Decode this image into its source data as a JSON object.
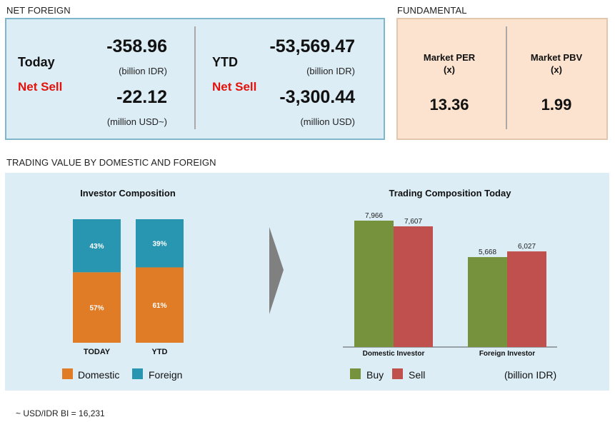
{
  "net_foreign": {
    "section_title": "NET FOREIGN",
    "today": {
      "label": "Today",
      "status": "Net Sell",
      "idr_value": "-358.96",
      "idr_unit": "(billion IDR)",
      "usd_value": "-22.12",
      "usd_unit": "(million USD~)"
    },
    "ytd": {
      "label": "YTD",
      "status": "Net Sell",
      "idr_value": "-53,569.47",
      "idr_unit": "(billion IDR)",
      "usd_value": "-3,300.44",
      "usd_unit": "(million USD)"
    }
  },
  "fundamental": {
    "section_title": "FUNDAMENTAL",
    "per": {
      "label": "Market PER",
      "unit": "(x)",
      "value": "13.36"
    },
    "pbv": {
      "label": "Market PBV",
      "unit": "(x)",
      "value": "1.99"
    }
  },
  "trading_value": {
    "section_title": "TRADING VALUE BY DOMESTIC AND FOREIGN",
    "footnote": "~ USD/IDR BI = 16,231"
  },
  "colors": {
    "domestic": "#e17c26",
    "foreign": "#2895b1",
    "buy": "#76923c",
    "sell": "#c0504d",
    "net_sell": "#e3120b"
  },
  "chart_data": [
    {
      "type": "bar",
      "stacked": true,
      "percent": true,
      "title": "Investor Composition",
      "categories": [
        "TODAY",
        "YTD"
      ],
      "series": [
        {
          "name": "Domestic",
          "values": [
            57,
            61
          ],
          "labels": [
            "57%",
            "61%"
          ],
          "color": "#e17c26"
        },
        {
          "name": "Foreign",
          "values": [
            43,
            39
          ],
          "labels": [
            "43%",
            "39%"
          ],
          "color": "#2895b1"
        }
      ],
      "ylim": [
        0,
        100
      ],
      "legend": "bottom"
    },
    {
      "type": "bar",
      "title": "Trading Composition Today",
      "categories": [
        "Domestic Investor",
        "Foreign Investor"
      ],
      "series": [
        {
          "name": "Buy",
          "values": [
            7966,
            5668
          ],
          "labels": [
            "7,966",
            "5,668"
          ],
          "color": "#76923c"
        },
        {
          "name": "Sell",
          "values": [
            7607,
            6027
          ],
          "labels": [
            "7,607",
            "6,027"
          ],
          "color": "#c0504d"
        }
      ],
      "unit": "(billion IDR)",
      "ylim": [
        0,
        9000
      ],
      "legend": "bottom"
    }
  ]
}
